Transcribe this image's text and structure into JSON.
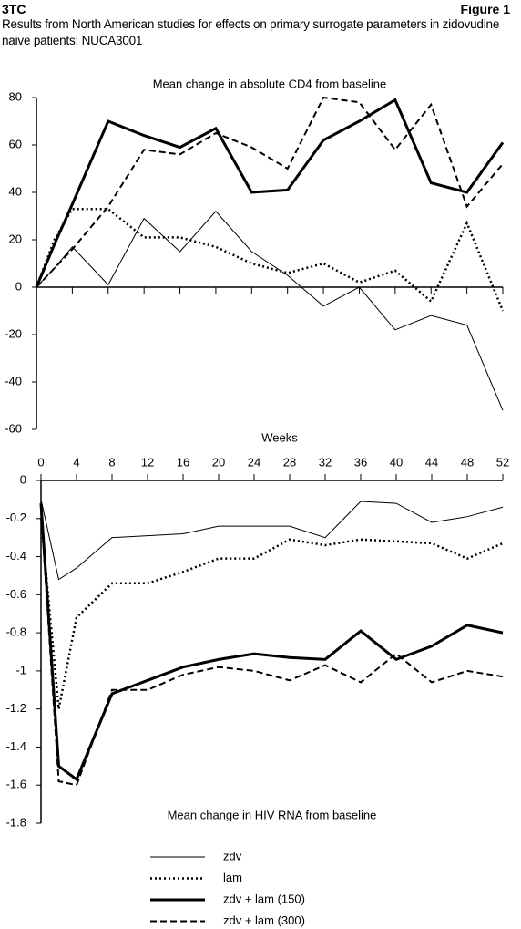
{
  "header": {
    "label": "3TC",
    "figure": "Figure 1",
    "caption": "Results from North American studies for effects on primary surrogate parameters in zidovudine naive patients: NUCA3001"
  },
  "chart_data": [
    {
      "type": "line",
      "title": "Mean change in absolute CD4 from baseline",
      "x": [
        0,
        2,
        4,
        8,
        12,
        16,
        20,
        24,
        28,
        32,
        36,
        40,
        44,
        48,
        52
      ],
      "xlim": [
        0,
        52
      ],
      "xticks": [
        0,
        4,
        8,
        12,
        16,
        20,
        24,
        28,
        32,
        36,
        40,
        44,
        48,
        52
      ],
      "ylim": [
        -60,
        80
      ],
      "yticks": [
        -60,
        -40,
        -20,
        0,
        20,
        40,
        60,
        80
      ],
      "grid": false,
      "series": [
        {
          "name": "zdv",
          "color": "#000000",
          "dash": "solid",
          "width": 1,
          "values": [
            0,
            8,
            17,
            1,
            29,
            15,
            32,
            15,
            5,
            -8,
            0,
            -18,
            -12,
            -16,
            -52
          ]
        },
        {
          "name": "lam",
          "color": "#000000",
          "dash": "dotted",
          "width": 2.5,
          "values": [
            0,
            20,
            33,
            33,
            21,
            21,
            17,
            10,
            6,
            10,
            2,
            7,
            -6,
            27,
            -10
          ]
        },
        {
          "name": "zdv + lam (150)",
          "color": "#000000",
          "dash": "solid",
          "width": 3,
          "values": [
            0,
            18,
            35,
            70,
            64,
            59,
            67,
            40,
            41,
            62,
            70,
            79,
            44,
            40,
            61
          ]
        },
        {
          "name": "zdv + lam (300)",
          "color": "#000000",
          "dash": "dashed",
          "width": 2,
          "values": [
            0,
            8,
            16,
            34,
            58,
            56,
            65,
            59,
            50,
            80,
            78,
            58,
            77,
            34,
            52
          ]
        }
      ]
    },
    {
      "type": "line",
      "title": "Mean change in HIV RNA from baseline",
      "x_label": "Weeks",
      "x": [
        0,
        2,
        4,
        8,
        12,
        16,
        20,
        24,
        28,
        32,
        36,
        40,
        44,
        48,
        52
      ],
      "xlim": [
        0,
        52
      ],
      "xticks": [
        0,
        4,
        8,
        12,
        16,
        20,
        24,
        28,
        32,
        36,
        40,
        44,
        48,
        52
      ],
      "ylim": [
        -1.8,
        0
      ],
      "yticks": [
        -1.8,
        -1.6,
        -1.4,
        -1.2,
        -1,
        -0.8,
        -0.6,
        -0.4,
        -0.2,
        0
      ],
      "grid": false,
      "legend": "bottom",
      "series": [
        {
          "name": "zdv",
          "color": "#000000",
          "dash": "solid",
          "width": 1,
          "values": [
            -0.1,
            -0.52,
            -0.46,
            -0.3,
            -0.29,
            -0.28,
            -0.24,
            -0.24,
            -0.24,
            -0.3,
            -0.11,
            -0.12,
            -0.22,
            -0.19,
            -0.14
          ]
        },
        {
          "name": "lam",
          "color": "#000000",
          "dash": "dotted",
          "width": 2.5,
          "values": [
            -0.2,
            -1.2,
            -0.72,
            -0.54,
            -0.54,
            -0.48,
            -0.41,
            -0.41,
            -0.31,
            -0.34,
            -0.31,
            -0.32,
            -0.33,
            -0.41,
            -0.33
          ]
        },
        {
          "name": "zdv + lam (150)",
          "color": "#000000",
          "dash": "solid",
          "width": 3,
          "values": [
            -0.12,
            -1.5,
            -1.57,
            -1.12,
            -1.05,
            -0.98,
            -0.94,
            -0.91,
            -0.93,
            -0.94,
            -0.79,
            -0.94,
            -0.87,
            -0.76,
            -0.8
          ]
        },
        {
          "name": "zdv + lam (300)",
          "color": "#000000",
          "dash": "dashed",
          "width": 2,
          "values": [
            -0.15,
            -1.58,
            -1.6,
            -1.1,
            -1.1,
            -1.02,
            -0.98,
            -1.0,
            -1.05,
            -0.97,
            -1.06,
            -0.91,
            -1.06,
            -1.0,
            -1.03
          ]
        }
      ]
    }
  ]
}
